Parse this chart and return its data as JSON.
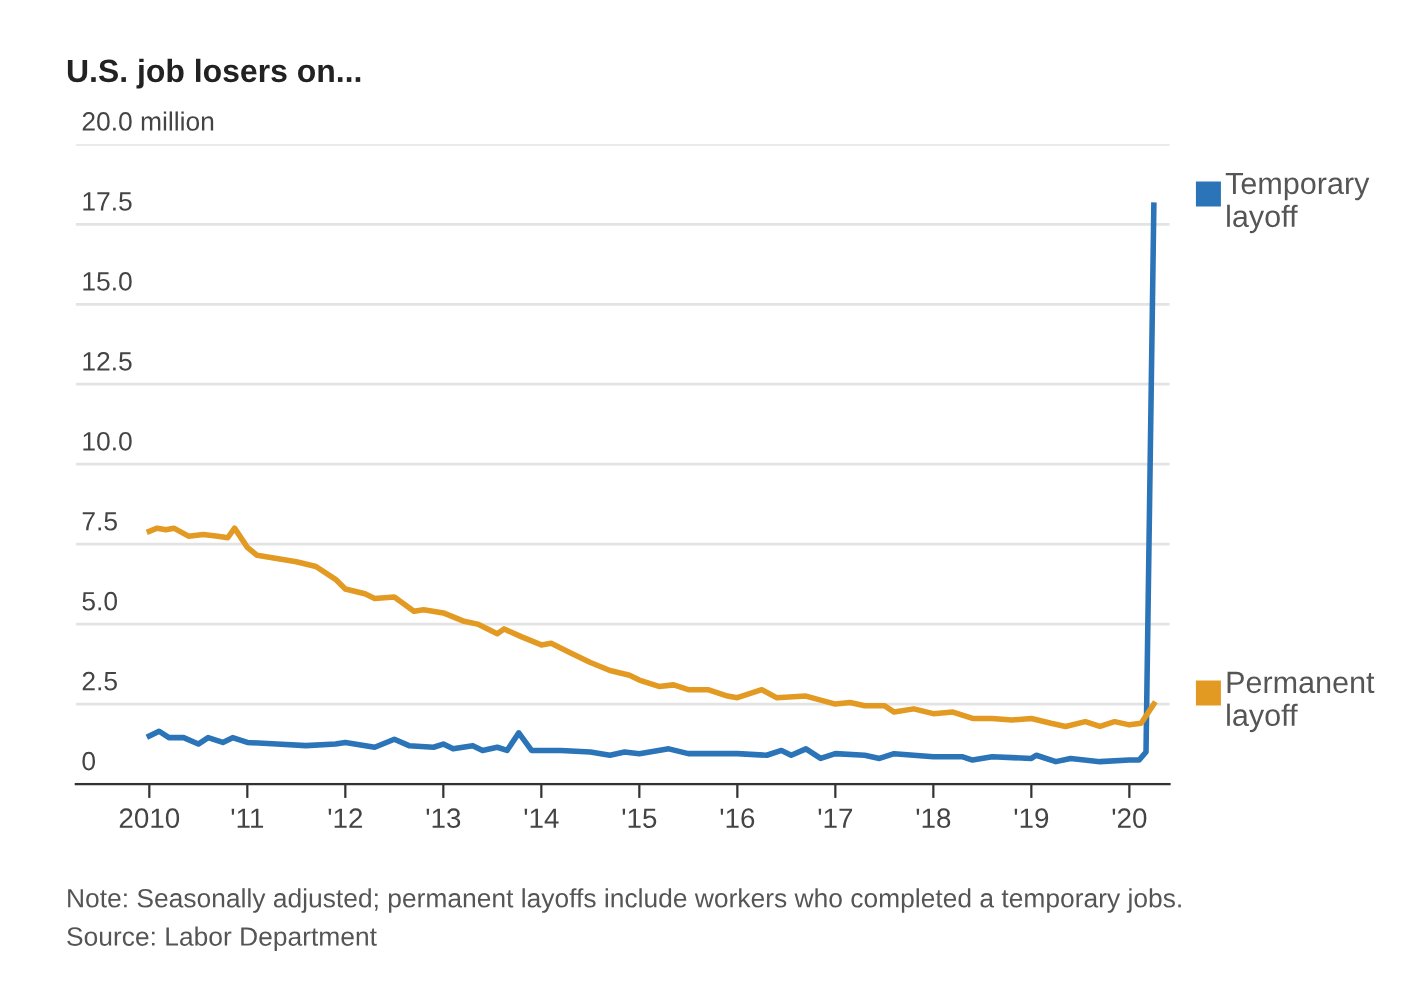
{
  "chart_data": {
    "type": "line",
    "title": "U.S. job losers on...",
    "xlim": [
      2009.25,
      2020.41
    ],
    "xticks": [
      {
        "value": 2010,
        "label": "2010"
      },
      {
        "value": 2011,
        "label": "'11"
      },
      {
        "value": 2012,
        "label": "'12"
      },
      {
        "value": 2013,
        "label": "'13"
      },
      {
        "value": 2014,
        "label": "'14"
      },
      {
        "value": 2015,
        "label": "'15"
      },
      {
        "value": 2016,
        "label": "'16"
      },
      {
        "value": 2017,
        "label": "'17"
      },
      {
        "value": 2018,
        "label": "'18"
      },
      {
        "value": 2019,
        "label": "'19"
      },
      {
        "value": 2020,
        "label": "'20"
      }
    ],
    "ylim": [
      0,
      20
    ],
    "yticks": [
      0,
      2.5,
      {
        "value": 5,
        "label": "5.0"
      },
      7.5,
      {
        "value": 10,
        "label": "10.0"
      },
      12.5,
      {
        "value": 15,
        "label": "15.0"
      },
      17.5,
      {
        "value": 20,
        "label": "20.0 million"
      }
    ],
    "grid": "y",
    "legend": "right",
    "series": [
      {
        "name": "Temporary layoff",
        "color": "#2b74b8",
        "x": [
          2010.0,
          2010.1,
          2010.2,
          2010.35,
          2010.5,
          2010.6,
          2010.75,
          2010.85,
          2011.0,
          2011.3,
          2011.6,
          2011.9,
          2012.0,
          2012.3,
          2012.5,
          2012.65,
          2012.9,
          2013.0,
          2013.1,
          2013.3,
          2013.4,
          2013.55,
          2013.65,
          2013.77,
          2013.9,
          2014.2,
          2014.5,
          2014.7,
          2014.85,
          2015.0,
          2015.3,
          2015.5,
          2015.8,
          2016.0,
          2016.3,
          2016.45,
          2016.55,
          2016.7,
          2016.85,
          2017.0,
          2017.3,
          2017.45,
          2017.6,
          2018.0,
          2018.3,
          2018.4,
          2018.6,
          2019.0,
          2019.05,
          2019.25,
          2019.4,
          2019.7,
          2020.0,
          2020.1,
          2020.17,
          2020.25
        ],
        "values": [
          1.5,
          1.65,
          1.45,
          1.45,
          1.25,
          1.45,
          1.3,
          1.45,
          1.3,
          1.25,
          1.2,
          1.25,
          1.3,
          1.15,
          1.4,
          1.2,
          1.15,
          1.25,
          1.1,
          1.2,
          1.05,
          1.15,
          1.05,
          1.6,
          1.05,
          1.05,
          1.0,
          0.9,
          1.0,
          0.95,
          1.1,
          0.95,
          0.95,
          0.95,
          0.9,
          1.05,
          0.9,
          1.1,
          0.8,
          0.95,
          0.9,
          0.8,
          0.95,
          0.85,
          0.85,
          0.75,
          0.85,
          0.8,
          0.9,
          0.7,
          0.8,
          0.7,
          0.75,
          0.75,
          1.0,
          18.1
        ]
      },
      {
        "name": "Permanent layoff",
        "color": "#e39a22",
        "x": [
          2010.0,
          2010.08,
          2010.17,
          2010.25,
          2010.4,
          2010.55,
          2010.7,
          2010.8,
          2010.87,
          2011.0,
          2011.1,
          2011.3,
          2011.5,
          2011.7,
          2011.9,
          2012.0,
          2012.2,
          2012.3,
          2012.5,
          2012.7,
          2012.8,
          2013.0,
          2013.2,
          2013.35,
          2013.55,
          2013.62,
          2013.8,
          2014.0,
          2014.1,
          2014.3,
          2014.5,
          2014.7,
          2014.9,
          2015.0,
          2015.2,
          2015.35,
          2015.5,
          2015.7,
          2015.9,
          2016.0,
          2016.25,
          2016.4,
          2016.7,
          2017.0,
          2017.15,
          2017.3,
          2017.5,
          2017.6,
          2017.8,
          2018.0,
          2018.2,
          2018.4,
          2018.6,
          2018.8,
          2019.0,
          2019.2,
          2019.35,
          2019.55,
          2019.7,
          2019.85,
          2020.0,
          2020.12,
          2020.25
        ],
        "values": [
          7.9,
          8.0,
          7.95,
          8.0,
          7.75,
          7.8,
          7.75,
          7.7,
          8.0,
          7.4,
          7.15,
          7.05,
          6.95,
          6.8,
          6.4,
          6.1,
          5.95,
          5.8,
          5.85,
          5.4,
          5.45,
          5.35,
          5.1,
          5.0,
          4.7,
          4.85,
          4.6,
          4.35,
          4.4,
          4.1,
          3.8,
          3.55,
          3.4,
          3.25,
          3.05,
          3.1,
          2.95,
          2.95,
          2.75,
          2.7,
          2.95,
          2.7,
          2.75,
          2.5,
          2.55,
          2.45,
          2.45,
          2.25,
          2.35,
          2.2,
          2.25,
          2.05,
          2.05,
          2.0,
          2.05,
          1.9,
          1.8,
          1.95,
          1.8,
          1.95,
          1.85,
          1.9,
          2.5
        ]
      }
    ],
    "annotations": [
      "Note: Seasonally adjusted; permanent layoffs include workers who completed a temporary jobs.",
      "Source: Labor Department"
    ]
  }
}
